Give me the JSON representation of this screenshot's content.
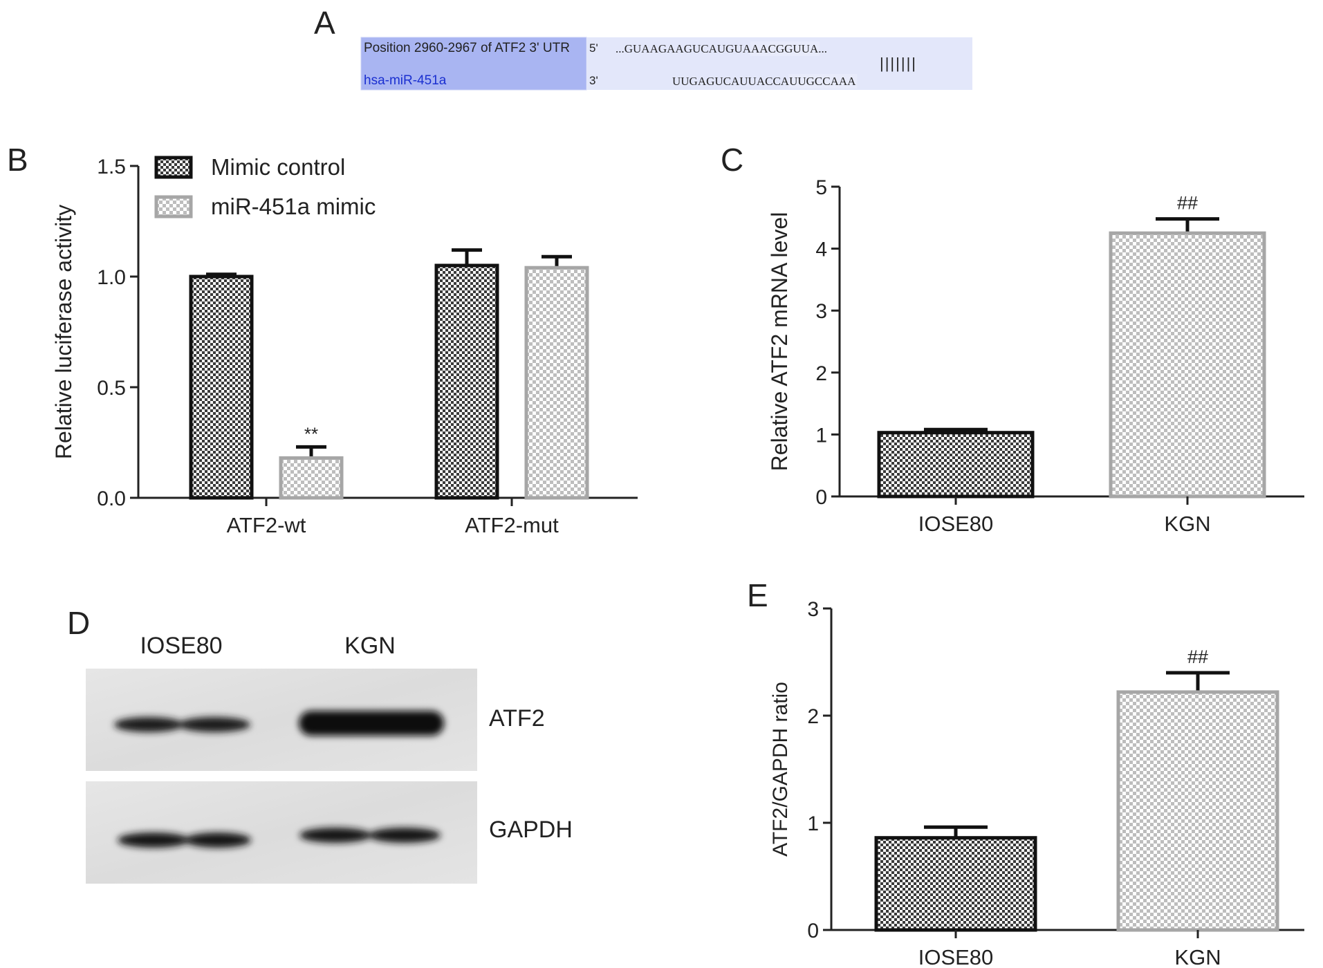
{
  "panels": {
    "a": "A",
    "b": "B",
    "c": "C",
    "d": "D",
    "e": "E"
  },
  "alignment": {
    "row1_label": "Position 2960-2967 of ATF2 3' UTR",
    "row2_label": "hsa-miR-451a",
    "row1_end": "5'",
    "row2_end": "3'",
    "row1_seq_prefix": "...GUAAGAAGUCAUGUA",
    "row1_seq_seed": "AACGGUUA",
    "row1_seq_suffix": "...",
    "row2_seq_prefix": "UUGAGUCAUUACCA",
    "row2_seq_seed": "UUGCCAAA",
    "pairing": "|||||||",
    "colors": {
      "background": "#a9b5f2",
      "seed_highlight": "#e8ebfb",
      "label2": "#1a2fd0"
    }
  },
  "colors": {
    "dark_bar": "#3a3a3a",
    "light_bar": "#a6a6a6",
    "axis": "#222222"
  },
  "blot": {
    "lanes": [
      "IOSE80",
      "KGN"
    ],
    "bands": [
      "ATF2",
      "GAPDH"
    ]
  },
  "chart_data": [
    {
      "id": "B",
      "type": "bar",
      "title": "",
      "ylabel": "Relative luciferase activity",
      "xlabel": "",
      "ylim": [
        0,
        1.5
      ],
      "yticks": [
        "0.0",
        "0.5",
        "1.0",
        "1.5"
      ],
      "categories": [
        "ATF2-wt",
        "ATF2-mut"
      ],
      "series": [
        {
          "name": "Mimic control",
          "values": [
            1.0,
            1.05
          ],
          "errors": [
            0.01,
            0.07
          ],
          "style": "dark"
        },
        {
          "name": "miR-451a mimic",
          "values": [
            0.18,
            1.04
          ],
          "errors": [
            0.05,
            0.05
          ],
          "style": "light"
        }
      ],
      "annotations": [
        {
          "series": 1,
          "category": 0,
          "text": "**"
        }
      ],
      "legend": "top-left"
    },
    {
      "id": "C",
      "type": "bar",
      "title": "",
      "ylabel": "Relative ATF2 mRNA level",
      "xlabel": "",
      "ylim": [
        0,
        5
      ],
      "yticks": [
        "0",
        "1",
        "2",
        "3",
        "4",
        "5"
      ],
      "categories": [
        "IOSE80",
        "KGN"
      ],
      "values": [
        1.03,
        4.25
      ],
      "errors": [
        0.05,
        0.23
      ],
      "styles": [
        "dark",
        "light"
      ],
      "annotations": [
        {
          "category": 1,
          "text": "##"
        }
      ]
    },
    {
      "id": "E",
      "type": "bar",
      "title": "",
      "ylabel": "ATF2/GAPDH ratio",
      "xlabel": "",
      "ylim": [
        0,
        3
      ],
      "yticks": [
        "0",
        "1",
        "2",
        "3"
      ],
      "categories": [
        "IOSE80",
        "KGN"
      ],
      "values": [
        0.86,
        2.22
      ],
      "errors": [
        0.1,
        0.18
      ],
      "styles": [
        "dark",
        "light"
      ],
      "annotations": [
        {
          "category": 1,
          "text": "##"
        }
      ]
    }
  ]
}
